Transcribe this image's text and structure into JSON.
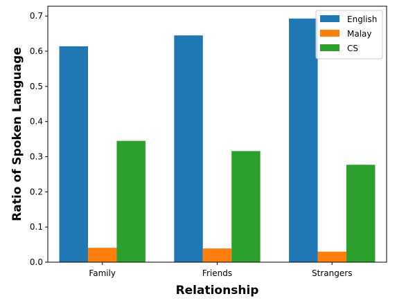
{
  "chart_data": {
    "type": "bar",
    "title": "",
    "xlabel": "Relationship",
    "ylabel": "Ratio of Spoken Language",
    "categories": [
      "Family",
      "Friends",
      "Strangers"
    ],
    "series": [
      {
        "name": "English",
        "color": "#1f77b4",
        "values": [
          0.614,
          0.645,
          0.693
        ]
      },
      {
        "name": "Malay",
        "color": "#ff7f0e",
        "values": [
          0.041,
          0.039,
          0.03
        ]
      },
      {
        "name": "CS",
        "color": "#2ca02c",
        "values": [
          0.345,
          0.316,
          0.277
        ]
      }
    ],
    "ylim": [
      0,
      0.728
    ],
    "yticks": [
      0.0,
      0.1,
      0.2,
      0.3,
      0.4,
      0.5,
      0.6,
      0.7
    ],
    "ytick_labels": [
      "0.0",
      "0.1",
      "0.2",
      "0.3",
      "0.4",
      "0.5",
      "0.6",
      "0.7"
    ],
    "legend_position": "top-right",
    "grid": false
  }
}
